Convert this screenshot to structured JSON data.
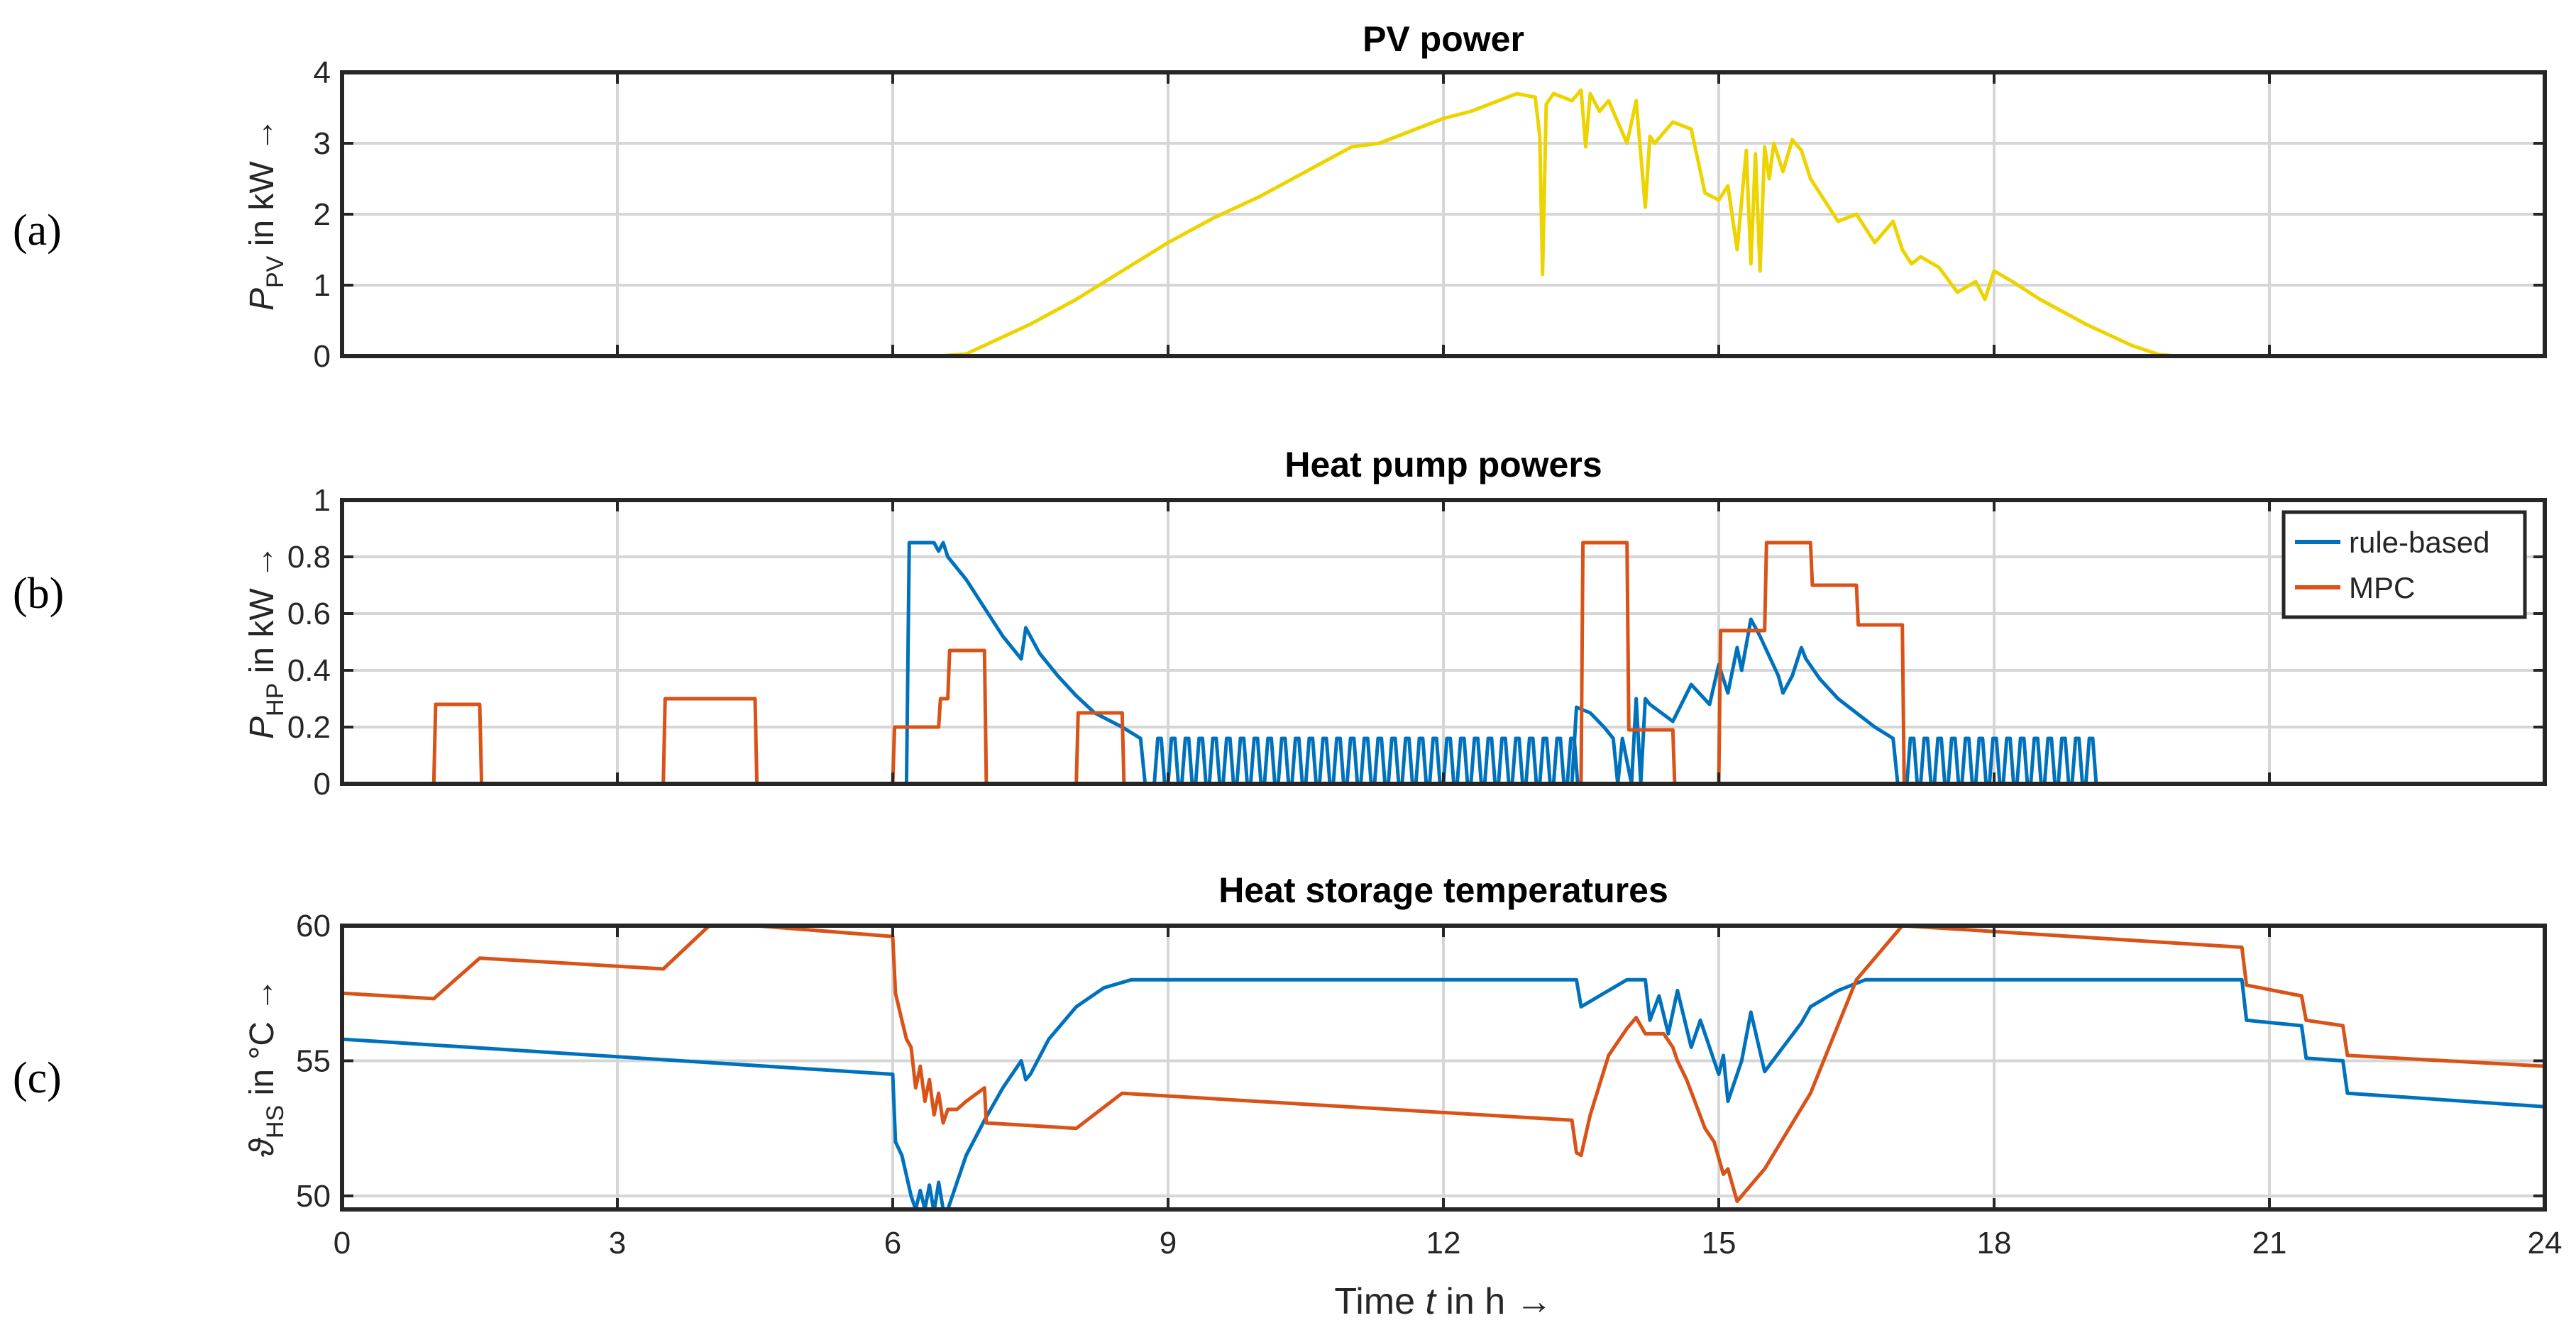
{
  "chart_data": [
    {
      "type": "line",
      "panel_label": "(a)",
      "title": "PV power",
      "ylabel": {
        "symbol": "P",
        "subscript": "PV",
        "suffix": " in kW →"
      },
      "xlim": [
        0,
        24
      ],
      "ylim": [
        0,
        4
      ],
      "yticks": [
        0,
        1,
        2,
        3,
        4
      ],
      "xticks": [
        0,
        3,
        6,
        9,
        12,
        15,
        18,
        21,
        24
      ],
      "grid": true,
      "series": [
        {
          "name": "PV",
          "color": "#EDD400",
          "x": [
            0,
            6.5,
            6.8,
            7.0,
            7.5,
            8.0,
            8.5,
            9.0,
            9.5,
            10.0,
            10.5,
            11.0,
            11.3,
            11.5,
            11.8,
            12.0,
            12.3,
            12.5,
            12.8,
            13.0,
            13.05,
            13.08,
            13.12,
            13.2,
            13.4,
            13.5,
            13.55,
            13.6,
            13.7,
            13.8,
            14.0,
            14.1,
            14.2,
            14.25,
            14.3,
            14.5,
            14.7,
            14.85,
            15.0,
            15.1,
            15.2,
            15.3,
            15.35,
            15.4,
            15.45,
            15.5,
            15.55,
            15.6,
            15.7,
            15.8,
            15.9,
            16.0,
            16.1,
            16.2,
            16.3,
            16.5,
            16.7,
            16.9,
            17.0,
            17.1,
            17.2,
            17.4,
            17.6,
            17.8,
            17.9,
            18.0,
            18.2,
            18.5,
            19.0,
            19.5,
            19.8,
            20.0,
            24
          ],
          "values": [
            0,
            0,
            0.03,
            0.15,
            0.45,
            0.8,
            1.2,
            1.6,
            1.95,
            2.25,
            2.6,
            2.95,
            3.0,
            3.1,
            3.25,
            3.35,
            3.45,
            3.55,
            3.7,
            3.65,
            3.1,
            1.15,
            3.55,
            3.7,
            3.6,
            3.75,
            2.95,
            3.7,
            3.45,
            3.6,
            3.0,
            3.6,
            2.1,
            3.1,
            3.0,
            3.3,
            3.2,
            2.3,
            2.2,
            2.4,
            1.5,
            2.9,
            1.3,
            2.85,
            1.2,
            2.95,
            2.5,
            3.0,
            2.6,
            3.05,
            2.9,
            2.5,
            2.3,
            2.1,
            1.9,
            2.0,
            1.6,
            1.9,
            1.5,
            1.3,
            1.4,
            1.25,
            0.9,
            1.05,
            0.8,
            1.2,
            1.05,
            0.8,
            0.45,
            0.15,
            0.02,
            0,
            0
          ]
        }
      ]
    },
    {
      "type": "line",
      "panel_label": "(b)",
      "title": "Heat pump powers",
      "ylabel": {
        "symbol": "P",
        "subscript": "HP",
        "suffix": " in kW →"
      },
      "xlim": [
        0,
        24
      ],
      "ylim": [
        0,
        1
      ],
      "yticks": [
        0,
        0.2,
        0.4,
        0.6,
        0.8,
        1
      ],
      "ytick_labels": [
        "0",
        "0.2",
        "0.4",
        "0.6",
        "0.8",
        "1"
      ],
      "xticks": [
        0,
        3,
        6,
        9,
        12,
        15,
        18,
        21,
        24
      ],
      "grid": true,
      "legend": {
        "location": "top-right",
        "entries": [
          "rule-based",
          "MPC"
        ]
      },
      "series": [
        {
          "name": "rule-based",
          "color": "#0072BD",
          "x": [
            0,
            6.15,
            6.18,
            6.45,
            6.5,
            6.55,
            6.6,
            6.8,
            7.0,
            7.2,
            7.4,
            7.45,
            7.6,
            7.8,
            8.0,
            8.2,
            8.5,
            8.7,
            8.75
          ],
          "values": [
            0,
            0,
            0.85,
            0.85,
            0.82,
            0.85,
            0.8,
            0.72,
            0.62,
            0.52,
            0.44,
            0.55,
            0.46,
            0.38,
            0.31,
            0.25,
            0.2,
            0.16,
            0
          ],
          "pulse_train": {
            "start": 8.85,
            "end": 13.4,
            "period": 0.15,
            "value": 0.16
          },
          "x2": [
            13.4,
            13.45,
            13.6,
            13.75,
            13.85,
            13.9,
            13.95,
            14.05,
            14.1,
            14.15,
            14.2,
            14.25,
            14.5,
            14.7,
            14.9,
            15.0,
            15.1,
            15.2,
            15.25,
            15.35,
            15.45,
            15.55,
            15.65,
            15.7,
            15.8,
            15.9,
            15.95,
            16.1,
            16.3,
            16.5,
            16.7,
            16.9,
            16.95
          ],
          "values2": [
            0,
            0.27,
            0.25,
            0.2,
            0.16,
            0,
            0.16,
            0,
            0.3,
            0,
            0.3,
            0.28,
            0.22,
            0.35,
            0.28,
            0.42,
            0.32,
            0.48,
            0.4,
            0.58,
            0.52,
            0.45,
            0.38,
            0.32,
            0.38,
            0.48,
            0.44,
            0.37,
            0.3,
            0.25,
            0.2,
            0.16,
            0
          ],
          "pulse_train2": {
            "start": 17.05,
            "end": 19.1,
            "period": 0.15,
            "value": 0.16
          }
        },
        {
          "name": "MPC",
          "color": "#D95319",
          "x": [
            0,
            1.0,
            1.02,
            1.5,
            1.52,
            3.5,
            3.52,
            4.5,
            4.52,
            6.0,
            6.02,
            6.5,
            6.52,
            6.6,
            6.62,
            7.0,
            7.02,
            8.0,
            8.02,
            8.5,
            8.52,
            13.5,
            13.52,
            14.0,
            14.02,
            14.5,
            14.52,
            15.0,
            15.02,
            15.5,
            15.52,
            16.0,
            16.02,
            16.5,
            16.52,
            17.0,
            17.02,
            24
          ],
          "values": [
            0,
            0,
            0.28,
            0.28,
            0,
            0,
            0.3,
            0.3,
            0,
            0,
            0.2,
            0.2,
            0.3,
            0.3,
            0.47,
            0.47,
            0,
            0,
            0.25,
            0.25,
            0,
            0,
            0.85,
            0.85,
            0.19,
            0.19,
            0,
            0,
            0.54,
            0.54,
            0.85,
            0.85,
            0.7,
            0.7,
            0.56,
            0.56,
            0,
            0
          ]
        }
      ]
    },
    {
      "type": "line",
      "panel_label": "(c)",
      "title": "Heat storage temperatures",
      "ylabel": {
        "symbol": "ϑ",
        "subscript": "HS",
        "suffix": " in °C →"
      },
      "xlim": [
        0,
        24
      ],
      "ylim": [
        49.5,
        60
      ],
      "yticks": [
        50,
        55,
        60
      ],
      "xticks": [
        0,
        3,
        6,
        9,
        12,
        15,
        18,
        21,
        24
      ],
      "xlabel": {
        "prefix": "Time ",
        "variable": "t",
        "suffix": " in h →"
      },
      "grid": true,
      "series": [
        {
          "name": "rule-based",
          "color": "#0072BD",
          "x": [
            0,
            6.0,
            6.03,
            6.1,
            6.2,
            6.25,
            6.3,
            6.35,
            6.4,
            6.45,
            6.5,
            6.55,
            6.6,
            6.7,
            6.8,
            7.0,
            7.2,
            7.4,
            7.45,
            7.5,
            7.7,
            8.0,
            8.3,
            8.6,
            8.7,
            13.45,
            13.5,
            13.7,
            13.9,
            14.0,
            14.2,
            14.25,
            14.35,
            14.45,
            14.55,
            14.7,
            14.8,
            14.95,
            15.0,
            15.05,
            15.1,
            15.15,
            15.25,
            15.35,
            15.5,
            15.7,
            15.9,
            16.0,
            16.3,
            16.6,
            16.9,
            17.0,
            20.7,
            20.75,
            21.35,
            21.4,
            21.8,
            21.85,
            24
          ],
          "values": [
            55.8,
            54.5,
            52.0,
            51.5,
            50.0,
            49.5,
            50.2,
            49.5,
            50.4,
            49.4,
            50.5,
            49.5,
            49.5,
            50.5,
            51.5,
            52.8,
            54.0,
            55.0,
            54.3,
            54.5,
            55.8,
            57.0,
            57.7,
            58.0,
            58.0,
            58.0,
            57.0,
            57.4,
            57.8,
            58.0,
            58.0,
            56.5,
            57.4,
            56.0,
            57.6,
            55.5,
            56.5,
            55.0,
            54.5,
            55.2,
            53.5,
            54.0,
            55.0,
            56.8,
            54.6,
            55.5,
            56.4,
            57.0,
            57.6,
            58.0,
            58.0,
            58.0,
            58.0,
            56.5,
            56.3,
            55.1,
            55.0,
            53.8,
            53.3
          ]
        },
        {
          "name": "MPC",
          "color": "#D95319",
          "x": [
            0,
            1.0,
            1.5,
            3.5,
            4.0,
            4.5,
            6.0,
            6.03,
            6.1,
            6.15,
            6.2,
            6.25,
            6.3,
            6.35,
            6.4,
            6.45,
            6.5,
            6.55,
            6.6,
            6.7,
            6.8,
            7.0,
            7.02,
            8.0,
            8.5,
            13.4,
            13.45,
            13.5,
            13.6,
            13.8,
            14.0,
            14.1,
            14.2,
            14.4,
            14.5,
            14.55,
            14.65,
            14.75,
            14.85,
            14.95,
            15.05,
            15.1,
            15.2,
            15.3,
            15.45,
            15.5,
            16.0,
            16.5,
            17.0,
            20.7,
            20.75,
            21.35,
            21.4,
            21.8,
            21.85,
            24
          ],
          "values": [
            57.5,
            57.3,
            58.8,
            58.4,
            60.0,
            60.0,
            59.6,
            57.5,
            56.5,
            55.8,
            55.5,
            54.0,
            54.8,
            53.5,
            54.3,
            53.0,
            53.8,
            52.7,
            53.2,
            53.2,
            53.5,
            54.0,
            52.7,
            52.5,
            53.8,
            52.8,
            51.6,
            51.5,
            53.0,
            55.2,
            56.2,
            56.6,
            56.0,
            56.0,
            55.5,
            55.0,
            54.3,
            53.4,
            52.5,
            52.0,
            50.8,
            51.0,
            49.8,
            50.2,
            50.8,
            51.0,
            53.8,
            58.0,
            60.0,
            59.2,
            57.8,
            57.4,
            56.5,
            56.3,
            55.2,
            54.8
          ]
        }
      ]
    }
  ]
}
